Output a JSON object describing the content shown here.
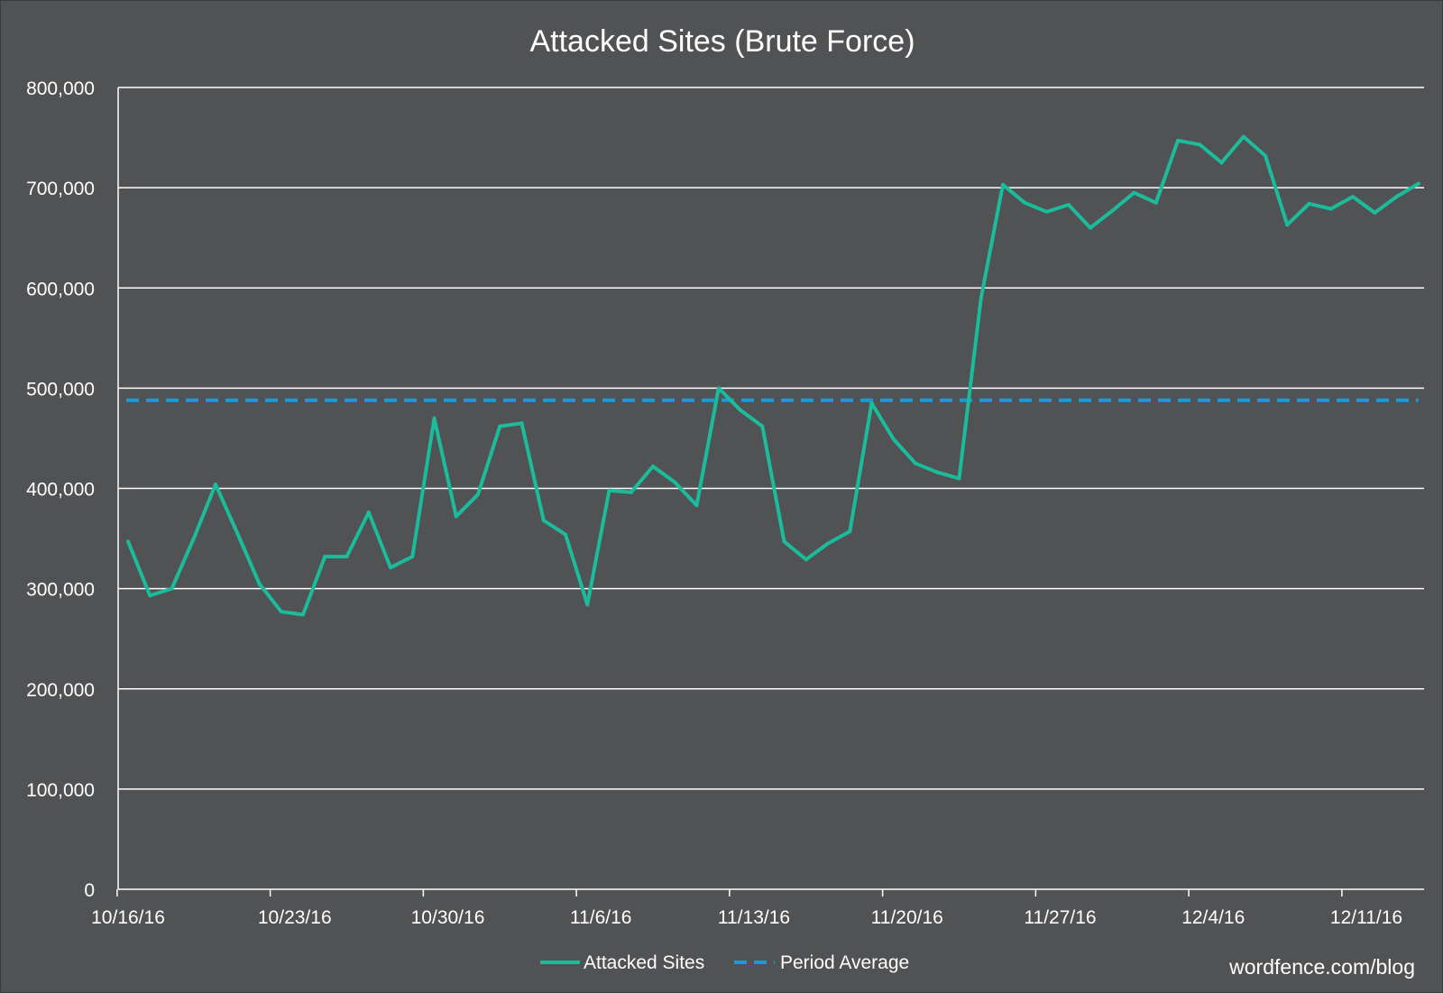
{
  "chart_data": {
    "type": "line",
    "title": "Attacked Sites (Brute Force)",
    "xlabel": "",
    "ylabel": "",
    "ylim": [
      0,
      800000
    ],
    "y_ticks": [
      0,
      100000,
      200000,
      300000,
      400000,
      500000,
      600000,
      700000,
      800000
    ],
    "y_tick_labels": [
      "0",
      "100,000",
      "200,000",
      "300,000",
      "400,000",
      "500,000",
      "600,000",
      "700,000",
      "800,000"
    ],
    "x_tick_labels": [
      "10/16/16",
      "10/23/16",
      "10/30/16",
      "11/6/16",
      "11/13/16",
      "11/20/16",
      "11/27/16",
      "12/4/16",
      "12/11/16"
    ],
    "x_start": "10/16/16",
    "grid": true,
    "legend_position": "bottom",
    "colors": {
      "background": "#515254",
      "series": "#1abc9c",
      "average": "#1a9ad6",
      "grid": "#ffffff",
      "text": "#ffffff"
    },
    "series": [
      {
        "name": "Attacked Sites",
        "values": [
          347000,
          293000,
          300000,
          350000,
          404000,
          355000,
          305000,
          277000,
          274000,
          332000,
          332000,
          376000,
          321000,
          332000,
          470000,
          372000,
          394000,
          462000,
          465000,
          368000,
          354000,
          284000,
          398000,
          396000,
          422000,
          406000,
          383000,
          500000,
          478000,
          462000,
          347000,
          329000,
          345000,
          357000,
          485000,
          449000,
          425000,
          416000,
          410000,
          590000,
          703000,
          685000,
          676000,
          683000,
          660000,
          677000,
          695000,
          685000,
          747000,
          743000,
          725000,
          751000,
          732000,
          663000,
          684000,
          679000,
          691000,
          675000,
          691000,
          704000
        ]
      },
      {
        "name": "Period Average",
        "values": [
          488000
        ]
      }
    ]
  },
  "watermark": "wordfence.com/blog"
}
